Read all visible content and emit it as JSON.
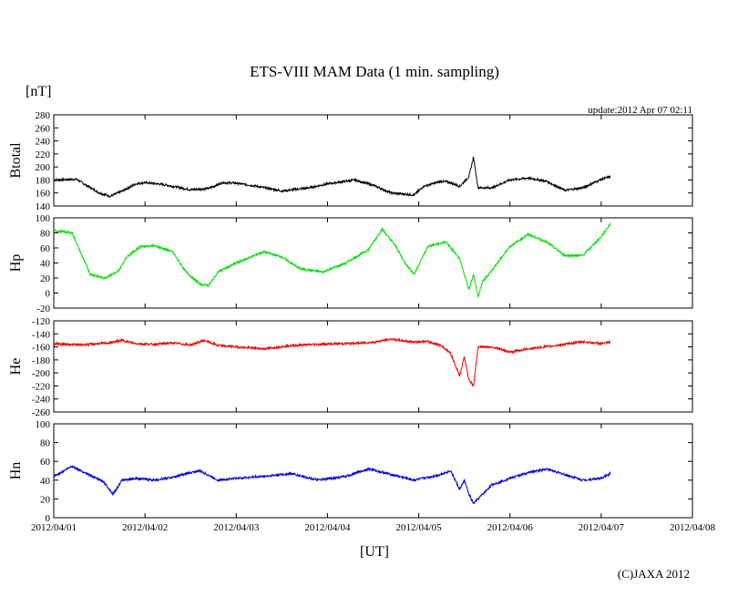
{
  "title": "ETS-VIII MAM Data (1 min. sampling)",
  "unit_label": "[nT]",
  "update_text": "update:2012 Apr 07 02:11",
  "xlabel": "[UT]",
  "copyright": "(C)JAXA 2012",
  "chart_data": [
    {
      "type": "line",
      "name": "Btotal",
      "ylabel": "Btotal",
      "color": "#000000",
      "ylim": [
        140,
        280
      ],
      "yticks": [
        "280",
        "260",
        "240",
        "220",
        "200",
        "180",
        "160",
        "140"
      ],
      "xticks": [
        "2012/04/01",
        "2012/04/02",
        "2012/04/03",
        "2012/04/04",
        "2012/04/05",
        "2012/04/06",
        "2012/04/07",
        "2012/04/08"
      ],
      "xlim_days": [
        0,
        7
      ],
      "x": [
        0,
        0.25,
        0.5,
        0.62,
        0.75,
        0.9,
        1.0,
        1.2,
        1.5,
        1.7,
        1.85,
        2.0,
        2.2,
        2.5,
        2.8,
        3.0,
        3.3,
        3.5,
        3.7,
        3.95,
        4.05,
        4.25,
        4.35,
        4.45,
        4.55,
        4.6,
        4.65,
        4.8,
        5.0,
        5.2,
        5.4,
        5.6,
        5.8,
        6.0,
        6.1
      ],
      "values": [
        180,
        181,
        160,
        155,
        163,
        174,
        176,
        173,
        165,
        167,
        176,
        175,
        171,
        163,
        168,
        174,
        180,
        172,
        160,
        157,
        170,
        178,
        176,
        170,
        185,
        215,
        168,
        168,
        180,
        183,
        178,
        164,
        168,
        181,
        185
      ]
    },
    {
      "type": "line",
      "name": "Hp",
      "ylabel": "Hp",
      "color": "#00dd00",
      "ylim": [
        -20,
        100
      ],
      "yticks": [
        "100",
        "80",
        "60",
        "40",
        "20",
        "0",
        "-20"
      ],
      "xticks": [
        "2012/04/01",
        "2012/04/02",
        "2012/04/03",
        "2012/04/04",
        "2012/04/05",
        "2012/04/06",
        "2012/04/07",
        "2012/04/08"
      ],
      "xlim_days": [
        0,
        7
      ],
      "x": [
        0,
        0.2,
        0.4,
        0.55,
        0.7,
        0.8,
        0.95,
        1.1,
        1.3,
        1.45,
        1.6,
        1.7,
        1.8,
        2.0,
        2.3,
        2.5,
        2.7,
        2.95,
        3.2,
        3.45,
        3.6,
        3.75,
        3.85,
        3.95,
        4.1,
        4.3,
        4.45,
        4.55,
        4.6,
        4.65,
        4.7,
        4.85,
        5.0,
        5.2,
        5.4,
        5.6,
        5.8,
        6.0,
        6.1
      ],
      "values": [
        83,
        80,
        25,
        20,
        28,
        48,
        62,
        63,
        55,
        28,
        12,
        10,
        28,
        40,
        55,
        48,
        32,
        28,
        40,
        58,
        85,
        62,
        40,
        25,
        62,
        68,
        45,
        5,
        25,
        -5,
        15,
        38,
        62,
        78,
        68,
        50,
        50,
        75,
        92
      ]
    },
    {
      "type": "line",
      "name": "He",
      "ylabel": "He",
      "color": "#ee0000",
      "ylim": [
        -260,
        -120
      ],
      "yticks": [
        "-120",
        "-140",
        "-160",
        "-180",
        "-200",
        "-220",
        "-240",
        "-260"
      ],
      "xticks": [
        "2012/04/01",
        "2012/04/02",
        "2012/04/03",
        "2012/04/04",
        "2012/04/05",
        "2012/04/06",
        "2012/04/07",
        "2012/04/08"
      ],
      "xlim_days": [
        0,
        7
      ],
      "x": [
        0,
        0.3,
        0.6,
        0.75,
        0.9,
        1.1,
        1.3,
        1.5,
        1.65,
        1.8,
        2.0,
        2.3,
        2.6,
        2.9,
        3.2,
        3.5,
        3.7,
        3.9,
        4.1,
        4.25,
        4.35,
        4.45,
        4.5,
        4.55,
        4.6,
        4.65,
        4.8,
        5.0,
        5.2,
        5.5,
        5.8,
        6.0,
        6.1
      ],
      "values": [
        -155,
        -157,
        -154,
        -150,
        -155,
        -156,
        -154,
        -157,
        -150,
        -158,
        -160,
        -163,
        -158,
        -156,
        -155,
        -153,
        -148,
        -152,
        -152,
        -158,
        -170,
        -205,
        -175,
        -210,
        -220,
        -160,
        -160,
        -168,
        -163,
        -158,
        -152,
        -155,
        -153
      ]
    },
    {
      "type": "line",
      "name": "Hn",
      "ylabel": "Hn",
      "color": "#0000dd",
      "ylim": [
        0,
        100
      ],
      "yticks": [
        "100",
        "80",
        "60",
        "40",
        "20",
        "0"
      ],
      "xticks": [
        "2012/04/01",
        "2012/04/02",
        "2012/04/03",
        "2012/04/04",
        "2012/04/05",
        "2012/04/06",
        "2012/04/07",
        "2012/04/08"
      ],
      "xlim_days": [
        0,
        7
      ],
      "x": [
        0,
        0.2,
        0.4,
        0.55,
        0.65,
        0.75,
        0.9,
        1.1,
        1.3,
        1.5,
        1.6,
        1.7,
        1.8,
        2.0,
        2.3,
        2.6,
        2.9,
        3.2,
        3.45,
        3.7,
        3.95,
        4.2,
        4.35,
        4.45,
        4.5,
        4.55,
        4.6,
        4.65,
        4.8,
        5.0,
        5.2,
        5.4,
        5.6,
        5.8,
        6.0,
        6.1
      ],
      "values": [
        44,
        55,
        45,
        38,
        25,
        40,
        42,
        40,
        43,
        48,
        50,
        45,
        40,
        42,
        44,
        47,
        40,
        44,
        52,
        46,
        40,
        45,
        50,
        30,
        40,
        25,
        15,
        20,
        35,
        42,
        48,
        52,
        46,
        40,
        42,
        47
      ]
    }
  ]
}
